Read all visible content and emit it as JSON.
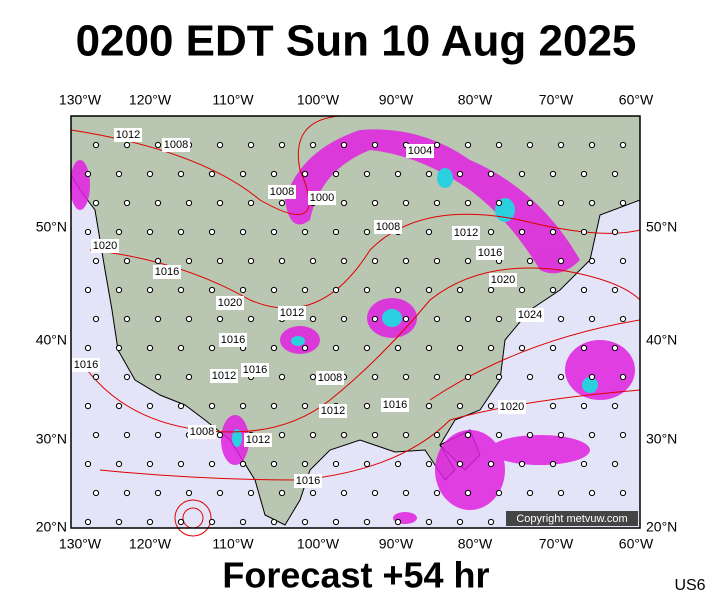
{
  "title": "0200 EDT Sun 10 Aug 2025",
  "longitude_labels": [
    "130°W",
    "120°W",
    "110°W",
    "100°W",
    "90°W",
    "80°W",
    "70°W",
    "60°W"
  ],
  "latitude_labels": [
    "50°N",
    "40°N",
    "30°N",
    "20°N"
  ],
  "isobar_labels": [
    "1012",
    "1008",
    "1004",
    "1000",
    "1008",
    "1008",
    "1012",
    "1016",
    "1020",
    "1024",
    "1020",
    "1016",
    "1020",
    "1012",
    "1016",
    "1016",
    "1012",
    "1016",
    "1008",
    "1012",
    "1016",
    "1020",
    "1008",
    "1012",
    "1016"
  ],
  "copyright": "Copyright metvuw.com",
  "footer": "Forecast +54 hr",
  "region_code": "US6"
}
